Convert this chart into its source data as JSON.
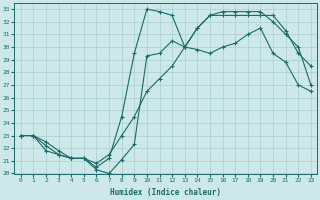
{
  "bg_color": "#cce8e8",
  "line_color": "#1a6b6b",
  "grid_color": "#aacfcf",
  "xlabel": "Humidex (Indice chaleur)",
  "ylim": [
    20,
    33.5
  ],
  "xlim": [
    -0.5,
    23.5
  ],
  "yticks": [
    20,
    21,
    22,
    23,
    24,
    25,
    26,
    27,
    28,
    29,
    30,
    31,
    32,
    33
  ],
  "xticks": [
    0,
    1,
    2,
    3,
    4,
    5,
    6,
    7,
    8,
    9,
    10,
    11,
    12,
    13,
    14,
    15,
    16,
    17,
    18,
    19,
    20,
    21,
    22,
    23
  ],
  "series1_x": [
    0,
    1,
    2,
    3,
    4,
    5,
    6,
    7,
    8,
    9,
    10,
    11,
    12,
    13,
    14,
    15,
    16,
    17,
    18,
    19,
    20,
    21,
    22,
    23
  ],
  "series1_y": [
    23.0,
    23.0,
    22.2,
    21.5,
    21.2,
    21.2,
    20.3,
    20.0,
    21.1,
    22.3,
    29.3,
    29.5,
    30.5,
    30.0,
    29.8,
    29.5,
    30.0,
    30.3,
    31.0,
    31.5,
    29.5,
    28.8,
    27.0,
    26.5
  ],
  "series2_x": [
    0,
    1,
    2,
    3,
    4,
    5,
    6,
    7,
    8,
    9,
    10,
    11,
    12,
    13,
    14,
    15,
    16,
    17,
    18,
    19,
    20,
    21,
    22,
    23
  ],
  "series2_y": [
    23.0,
    23.0,
    21.8,
    21.5,
    21.2,
    21.2,
    20.5,
    21.2,
    24.5,
    29.5,
    33.0,
    32.8,
    32.5,
    30.0,
    31.5,
    32.5,
    32.5,
    32.5,
    32.5,
    32.5,
    32.5,
    31.3,
    29.5,
    28.5
  ],
  "series3_x": [
    0,
    1,
    2,
    3,
    4,
    5,
    6,
    7,
    8,
    9,
    10,
    11,
    12,
    13,
    14,
    15,
    16,
    17,
    18,
    19,
    20,
    21,
    22,
    23
  ],
  "series3_y": [
    23.0,
    23.0,
    22.5,
    21.8,
    21.2,
    21.2,
    20.8,
    21.5,
    23.0,
    24.5,
    26.5,
    27.5,
    28.5,
    30.0,
    31.5,
    32.5,
    32.8,
    32.8,
    32.8,
    32.8,
    32.0,
    31.0,
    30.0,
    27.0
  ]
}
